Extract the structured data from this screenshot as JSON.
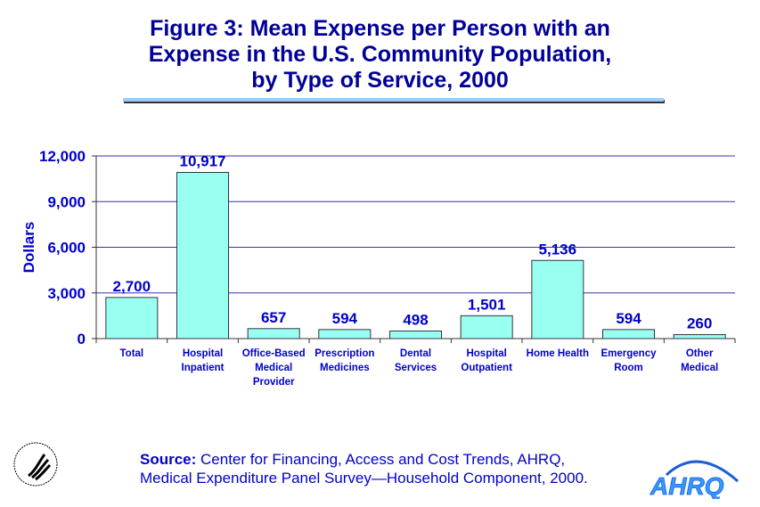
{
  "chart_data": {
    "type": "bar",
    "title": "Figure 3: Mean Expense per Person with an\nExpense in the U.S. Community Population,\nby Type of Service, 2000",
    "ylabel": "Dollars",
    "xlabel": "",
    "ylim": [
      0,
      12000
    ],
    "yticks": [
      "0",
      "3,000",
      "6,000",
      "9,000",
      "12,000"
    ],
    "ytick_values": [
      0,
      3000,
      6000,
      9000,
      12000
    ],
    "grid": true,
    "categories": [
      "Total",
      "Hospital\nInpatient",
      "Office-Based\nMedical\nProvider",
      "Prescription\nMedicines",
      "Dental\nServices",
      "Hospital\nOutpatient",
      "Home Health",
      "Emergency\nRoom",
      "Other\nMedical"
    ],
    "values": [
      2700,
      10917,
      657,
      594,
      498,
      1501,
      5136,
      594,
      260
    ],
    "data_labels": [
      "2,700",
      "10,917",
      "657",
      "594",
      "498",
      "1,501",
      "5,136",
      "594",
      "260"
    ],
    "colors": {
      "bar": "#99fff0",
      "text": "#0000cc",
      "title": "#000099",
      "grid": "#3333aa"
    }
  },
  "source": {
    "label": "Source:",
    "text": " Center for Financing, Access and Cost Trends, AHRQ,",
    "line2": "Medical Expenditure Panel Survey—Household Component, 2000."
  },
  "logos": {
    "left": "HHS",
    "right": "AHRQ"
  }
}
